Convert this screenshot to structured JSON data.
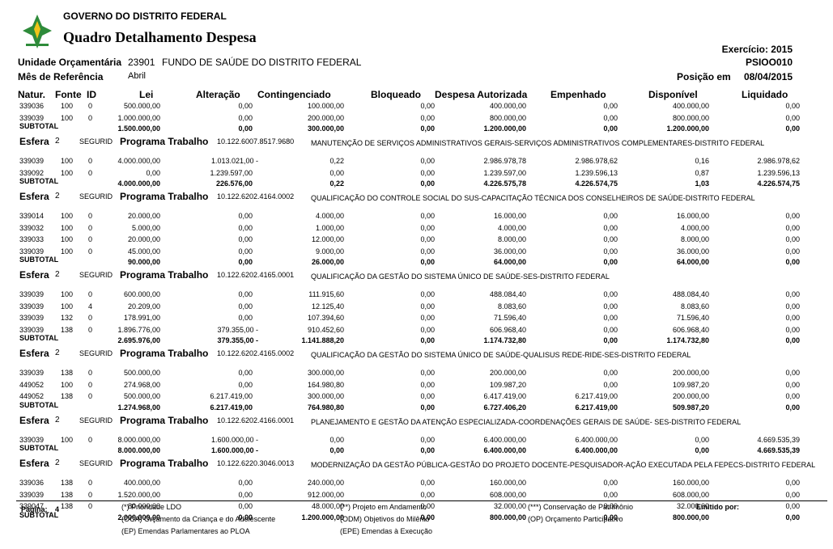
{
  "header": {
    "gov": "GOVERNO DO DISTRITO FEDERAL",
    "title": "Quadro Detalhamento Despesa",
    "exercicio": "Exercício: 2015",
    "code": "PSIOO010",
    "unidade_label": "Unidade Orçamentária",
    "unidade_code": "23901",
    "unidade_name": "FUNDO DE SAÚDE DO DISTRITO FEDERAL",
    "mes_label": "Mês de Referência",
    "mes": "Abril",
    "posicao_label": "Posição em",
    "posicao": "08/04/2015"
  },
  "table": {
    "columns": [
      "Natur.",
      "Fonte",
      "ID",
      "Lei",
      "Alteração",
      "Contingenciado",
      "Bloqueado",
      "Despesa Autorizada",
      "Empenhado",
      "Disponível",
      "Liquidado"
    ],
    "sections": [
      {
        "rows": [
          [
            "339036",
            "100",
            "0",
            "500.000,00",
            "0,00",
            "100.000,00",
            "0,00",
            "400.000,00",
            "0,00",
            "400.000,00",
            "0,00"
          ],
          [
            "339039",
            "100",
            "0",
            "1.000.000,00",
            "0,00",
            "200.000,00",
            "0,00",
            "800.000,00",
            "0,00",
            "800.000,00",
            "0,00"
          ]
        ],
        "subtotal": {
          "label": "SUBTOTAL",
          "values": [
            "1.500.000,00",
            "0,00",
            "300.000,00",
            "0,00",
            "1.200.000,00",
            "0,00",
            "1.200.000,00",
            "0,00"
          ]
        }
      },
      {
        "esfera": {
          "label": "Esfera",
          "value": "2",
          "group": "SEGURID",
          "programa_label": "Programa Trabalho",
          "code": "10.122.6007.8517.9680",
          "description": "MANUTENÇÃO DE SERVIÇOS ADMINISTRATIVOS GERAIS-SERVIÇOS ADMINISTRATIVOS COMPLEMENTARES-DISTRITO FEDERAL"
        },
        "rows": [
          [
            "339039",
            "100",
            "0",
            "4.000.000,00",
            "1.013.021,00 -",
            "0,22",
            "0,00",
            "2.986.978,78",
            "2.986.978,62",
            "0,16",
            "2.986.978,62"
          ],
          [
            "339092",
            "100",
            "0",
            "0,00",
            "1.239.597,00",
            "0,00",
            "0,00",
            "1.239.597,00",
            "1.239.596,13",
            "0,87",
            "1.239.596,13"
          ]
        ],
        "subtotal": {
          "label": "SUBTOTAL",
          "values": [
            "4.000.000,00",
            "226.576,00",
            "0,22",
            "0,00",
            "4.226.575,78",
            "4.226.574,75",
            "1,03",
            "4.226.574,75"
          ]
        }
      },
      {
        "esfera": {
          "label": "Esfera",
          "value": "2",
          "group": "SEGURID",
          "programa_label": "Programa Trabalho",
          "code": "10.122.6202.4164.0002",
          "description": "QUALIFICAÇÃO DO CONTROLE SOCIAL DO SUS-CAPACITAÇÃO TÉCNICA DOS CONSELHEIROS DE SAÚDE-DISTRITO FEDERAL"
        },
        "rows": [
          [
            "339014",
            "100",
            "0",
            "20.000,00",
            "0,00",
            "4.000,00",
            "0,00",
            "16.000,00",
            "0,00",
            "16.000,00",
            "0,00"
          ],
          [
            "339032",
            "100",
            "0",
            "5.000,00",
            "0,00",
            "1.000,00",
            "0,00",
            "4.000,00",
            "0,00",
            "4.000,00",
            "0,00"
          ],
          [
            "339033",
            "100",
            "0",
            "20.000,00",
            "0,00",
            "12.000,00",
            "0,00",
            "8.000,00",
            "0,00",
            "8.000,00",
            "0,00"
          ],
          [
            "339039",
            "100",
            "0",
            "45.000,00",
            "0,00",
            "9.000,00",
            "0,00",
            "36.000,00",
            "0,00",
            "36.000,00",
            "0,00"
          ]
        ],
        "subtotal": {
          "label": "SUBTOTAL",
          "values": [
            "90.000,00",
            "0,00",
            "26.000,00",
            "0,00",
            "64.000,00",
            "0,00",
            "64.000,00",
            "0,00"
          ]
        }
      },
      {
        "esfera": {
          "label": "Esfera",
          "value": "2",
          "group": "SEGURID",
          "programa_label": "Programa Trabalho",
          "code": "10.122.6202.4165.0001",
          "description": "QUALIFICAÇÃO DA GESTÃO DO SISTEMA ÚNICO DE SAÚDE-SES-DISTRITO FEDERAL"
        },
        "rows": [
          [
            "339039",
            "100",
            "0",
            "600.000,00",
            "0,00",
            "111.915,60",
            "0,00",
            "488.084,40",
            "0,00",
            "488.084,40",
            "0,00"
          ],
          [
            "339039",
            "100",
            "4",
            "20.209,00",
            "0,00",
            "12.125,40",
            "0,00",
            "8.083,60",
            "0,00",
            "8.083,60",
            "0,00"
          ],
          [
            "339039",
            "132",
            "0",
            "178.991,00",
            "0,00",
            "107.394,60",
            "0,00",
            "71.596,40",
            "0,00",
            "71.596,40",
            "0,00"
          ],
          [
            "339039",
            "138",
            "0",
            "1.896.776,00",
            "379.355,00 -",
            "910.452,60",
            "0,00",
            "606.968,40",
            "0,00",
            "606.968,40",
            "0,00"
          ]
        ],
        "subtotal": {
          "label": "SUBTOTAL",
          "values": [
            "2.695.976,00",
            "379.355,00 -",
            "1.141.888,20",
            "0,00",
            "1.174.732,80",
            "0,00",
            "1.174.732,80",
            "0,00"
          ]
        }
      },
      {
        "esfera": {
          "label": "Esfera",
          "value": "2",
          "group": "SEGURID",
          "programa_label": "Programa Trabalho",
          "code": "10.122.6202.4165.0002",
          "description": "QUALIFICAÇÃO DA GESTÃO DO SISTEMA ÚNICO DE SAÚDE-QUALISUS REDE-RIDE-SES-DISTRITO FEDERAL"
        },
        "rows": [
          [
            "339039",
            "138",
            "0",
            "500.000,00",
            "0,00",
            "300.000,00",
            "0,00",
            "200.000,00",
            "0,00",
            "200.000,00",
            "0,00"
          ],
          [
            "449052",
            "100",
            "0",
            "274.968,00",
            "0,00",
            "164.980,80",
            "0,00",
            "109.987,20",
            "0,00",
            "109.987,20",
            "0,00"
          ],
          [
            "449052",
            "138",
            "0",
            "500.000,00",
            "6.217.419,00",
            "300.000,00",
            "0,00",
            "6.417.419,00",
            "6.217.419,00",
            "200.000,00",
            "0,00"
          ]
        ],
        "subtotal": {
          "label": "SUBTOTAL",
          "values": [
            "1.274.968,00",
            "6.217.419,00",
            "764.980,80",
            "0,00",
            "6.727.406,20",
            "6.217.419,00",
            "509.987,20",
            "0,00"
          ]
        }
      },
      {
        "esfera": {
          "label": "Esfera",
          "value": "2",
          "group": "SEGURID",
          "programa_label": "Programa Trabalho",
          "code": "10.122.6202.4166.0001",
          "description": "PLANEJAMENTO E GESTÃO DA ATENÇÃO ESPECIALIZADA-COORDENAÇÕES GERAIS DE SAÚDE- SES-DISTRITO FEDERAL"
        },
        "rows": [
          [
            "339039",
            "100",
            "0",
            "8.000.000,00",
            "1.600.000,00 -",
            "0,00",
            "0,00",
            "6.400.000,00",
            "6.400.000,00",
            "0,00",
            "4.669.535,39"
          ]
        ],
        "subtotal": {
          "label": "SUBTOTAL",
          "values": [
            "8.000.000,00",
            "1.600.000,00 -",
            "0,00",
            "0,00",
            "6.400.000,00",
            "6.400.000,00",
            "0,00",
            "4.669.535,39"
          ]
        }
      },
      {
        "esfera": {
          "label": "Esfera",
          "value": "2",
          "group": "SEGURID",
          "programa_label": "Programa Trabalho",
          "code": "10.122.6220.3046.0013",
          "description": "MODERNIZAÇÃO DA GESTÃO PÚBLICA-GESTÃO DO PROJETO DOCENTE-PESQUISADOR-AÇÃO EXECUTADA PELA FEPECS-DISTRITO FEDERAL"
        },
        "rows": [
          [
            "339036",
            "138",
            "0",
            "400.000,00",
            "0,00",
            "240.000,00",
            "0,00",
            "160.000,00",
            "0,00",
            "160.000,00",
            "0,00"
          ],
          [
            "339039",
            "138",
            "0",
            "1.520.000,00",
            "0,00",
            "912.000,00",
            "0,00",
            "608.000,00",
            "0,00",
            "608.000,00",
            "0,00"
          ],
          [
            "339047",
            "138",
            "0",
            "80.000,00",
            "0,00",
            "48.000,00",
            "0,00",
            "32.000,00",
            "0,00",
            "32.000,00",
            "0,00"
          ]
        ],
        "subtotal": {
          "label": "SUBTOTAL",
          "values": [
            "2.000.000,00",
            "0,00",
            "1.200.000,00",
            "0,00",
            "800.000,00",
            "0,00",
            "800.000,00",
            "0,00"
          ]
        }
      }
    ]
  },
  "footer": {
    "page_label": "Página:",
    "page": "4",
    "legend": [
      "(*)  Prioridade LDO",
      "(**)  Projeto em Andamento",
      "(***)  Conservação de Patrimônio",
      "(OCA)  Orçamento da Criança e do Adolescente",
      "(ODM) Objetivos do Milênio",
      "(OP) Orçamento Participativo",
      "(EP)  Emendas Parlamentares ao PLOA",
      "(EPE) Emendas à Execução"
    ],
    "emitido": "Emitido por:"
  }
}
